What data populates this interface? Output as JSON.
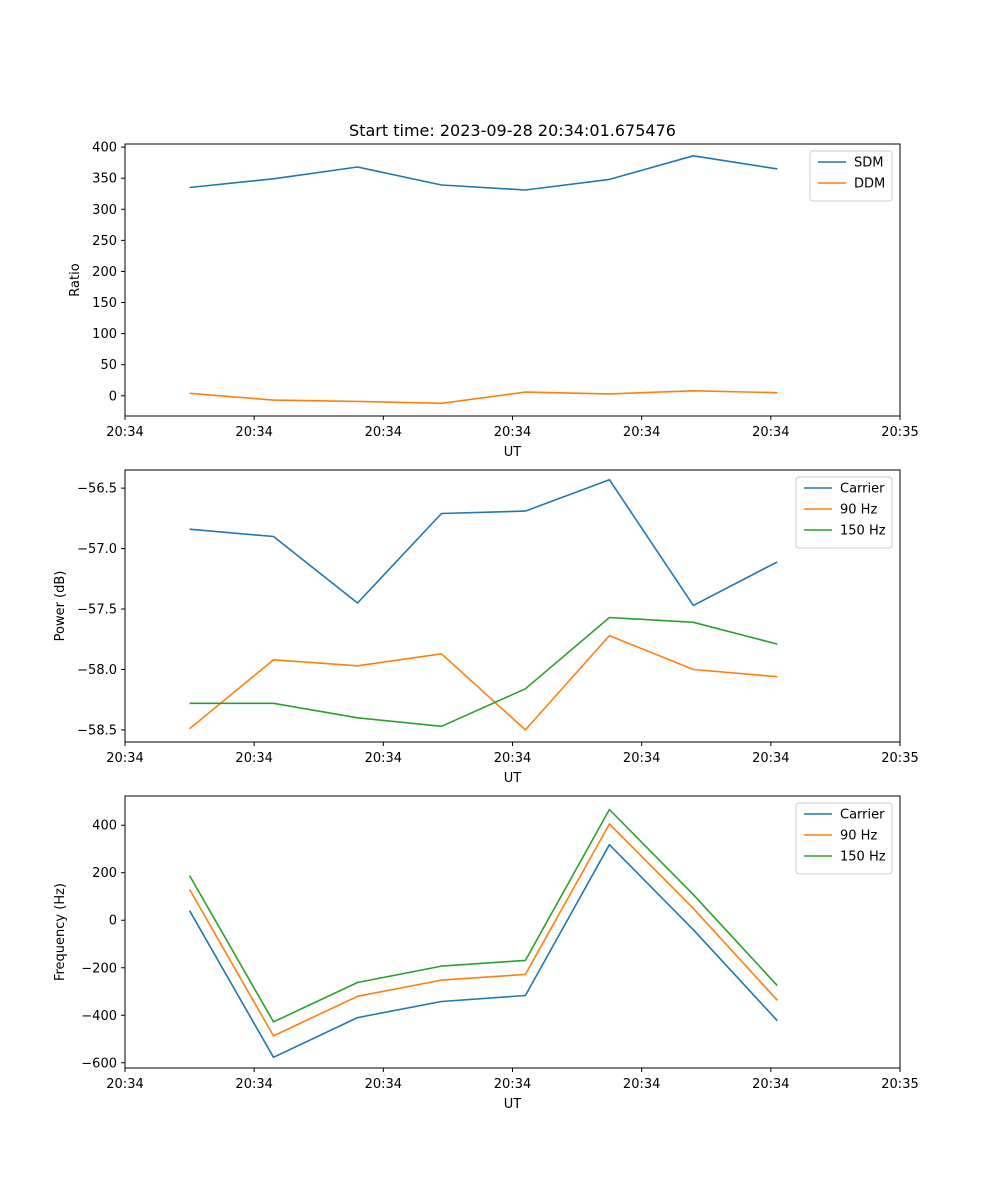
{
  "figure_title": "Start time: 2023-09-28 20:34:01.675476",
  "chart_data": [
    {
      "type": "line",
      "title": "Start time: 2023-09-28 20:34:01.675476",
      "xlabel": "UT",
      "ylabel": "Ratio",
      "x": [
        0.5,
        1.15,
        1.8,
        2.45,
        3.1,
        3.75,
        4.4,
        5.05
      ],
      "xlim": [
        0,
        6
      ],
      "xticks": [
        0,
        1,
        2,
        3,
        4,
        5,
        6
      ],
      "xtick_labels": [
        "20:34",
        "20:34",
        "20:34",
        "20:34",
        "20:34",
        "20:34",
        "20:35"
      ],
      "ylim": [
        -32.5,
        405
      ],
      "yticks": [
        0,
        50,
        100,
        150,
        200,
        250,
        300,
        350,
        400
      ],
      "ytick_labels": [
        "0",
        "50",
        "100",
        "150",
        "200",
        "250",
        "300",
        "350",
        "400"
      ],
      "legend_position": "top-right",
      "series": [
        {
          "name": "SDM",
          "color": "#1f77b4",
          "values": [
            335,
            349,
            368,
            339,
            331,
            348,
            386,
            365
          ]
        },
        {
          "name": "DDM",
          "color": "#ff7f0e",
          "values": [
            4,
            -7,
            -9,
            -12,
            6,
            3,
            8,
            5
          ]
        }
      ]
    },
    {
      "type": "line",
      "title": "",
      "xlabel": "UT",
      "ylabel": "Power (dB)",
      "x": [
        0.5,
        1.15,
        1.8,
        2.45,
        3.1,
        3.75,
        4.4,
        5.05
      ],
      "xlim": [
        0,
        6
      ],
      "xticks": [
        0,
        1,
        2,
        3,
        4,
        5,
        6
      ],
      "xtick_labels": [
        "20:34",
        "20:34",
        "20:34",
        "20:34",
        "20:34",
        "20:34",
        "20:35"
      ],
      "ylim": [
        -58.6,
        -56.35
      ],
      "yticks": [
        -58.5,
        -58.0,
        -57.5,
        -57.0,
        -56.5
      ],
      "ytick_labels": [
        "−58.5",
        "−58.0",
        "−57.5",
        "−57.0",
        "−56.5"
      ],
      "legend_position": "top-right",
      "series": [
        {
          "name": "Carrier",
          "color": "#1f77b4",
          "values": [
            -56.84,
            -56.9,
            -57.45,
            -56.71,
            -56.69,
            -56.43,
            -57.47,
            -57.11
          ]
        },
        {
          "name": "90 Hz",
          "color": "#ff7f0e",
          "values": [
            -58.49,
            -57.92,
            -57.97,
            -57.87,
            -58.5,
            -57.72,
            -58.0,
            -58.06
          ]
        },
        {
          "name": "150 Hz",
          "color": "#2ca02c",
          "values": [
            -58.28,
            -58.28,
            -58.4,
            -58.47,
            -58.16,
            -57.57,
            -57.61,
            -57.79
          ]
        }
      ]
    },
    {
      "type": "line",
      "title": "",
      "xlabel": "UT",
      "ylabel": "Frequency (Hz)",
      "x": [
        0.5,
        1.15,
        1.8,
        2.45,
        3.1,
        3.75,
        4.4,
        5.05
      ],
      "xlim": [
        0,
        6
      ],
      "xticks": [
        0,
        1,
        2,
        3,
        4,
        5,
        6
      ],
      "xtick_labels": [
        "20:34",
        "20:34",
        "20:34",
        "20:34",
        "20:34",
        "20:34",
        "20:35"
      ],
      "ylim": [
        -622,
        523
      ],
      "yticks": [
        -600,
        -400,
        -200,
        0,
        200,
        400
      ],
      "ytick_labels": [
        "−600",
        "−400",
        "−200",
        "0",
        "200",
        "400"
      ],
      "legend_position": "top-right",
      "series": [
        {
          "name": "Carrier",
          "color": "#1f77b4",
          "values": [
            40,
            -577,
            -410,
            -342,
            -317,
            318,
            -40,
            -423
          ]
        },
        {
          "name": "90 Hz",
          "color": "#ff7f0e",
          "values": [
            130,
            -487,
            -320,
            -252,
            -228,
            405,
            50,
            -337
          ]
        },
        {
          "name": "150 Hz",
          "color": "#2ca02c",
          "values": [
            188,
            -428,
            -262,
            -193,
            -169,
            466,
            108,
            -275
          ]
        }
      ]
    }
  ]
}
